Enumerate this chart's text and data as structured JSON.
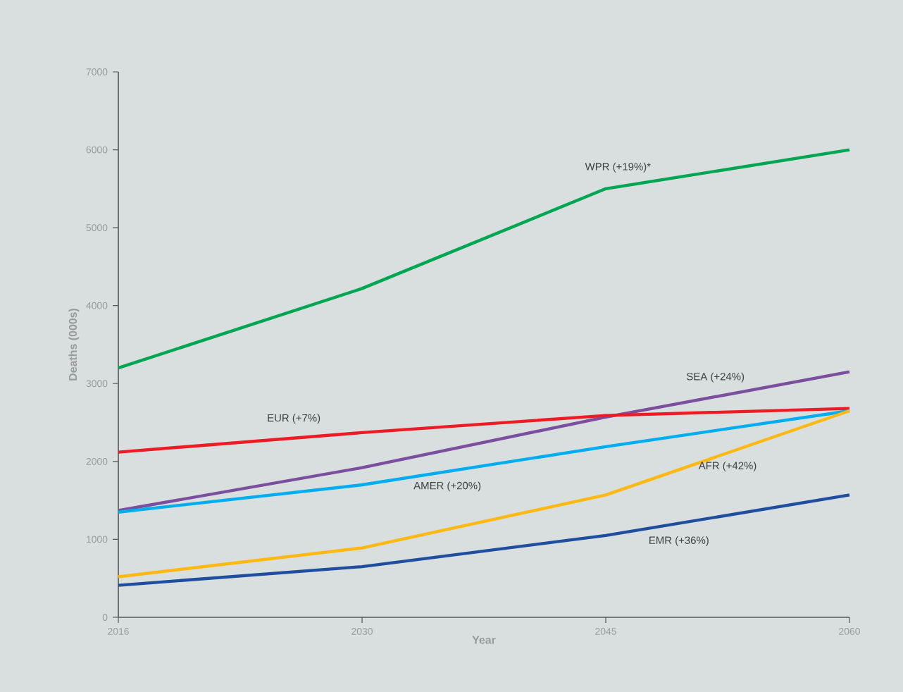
{
  "chart_data": {
    "type": "line",
    "xlabel": "Year",
    "ylabel": "Deaths (000s)",
    "categories": [
      "2016",
      "2030",
      "2045",
      "2060"
    ],
    "ylim": [
      0,
      7000
    ],
    "yticks": [
      0,
      1000,
      2000,
      3000,
      4000,
      5000,
      6000,
      7000
    ],
    "grid": false,
    "legend": false,
    "marker": "none",
    "line_style": "solid",
    "series": [
      {
        "name": "WPR (+19%)*",
        "color": "#00a651",
        "values": [
          3200,
          4220,
          5500,
          6000
        ]
      },
      {
        "name": "SEA (+24%)",
        "color": "#7b4f9e",
        "values": [
          1370,
          1920,
          2570,
          3150
        ]
      },
      {
        "name": "EUR (+7%)",
        "color": "#ed1c24",
        "values": [
          2120,
          2370,
          2590,
          2680
        ]
      },
      {
        "name": "AMER (+20%)",
        "color": "#00aeef",
        "values": [
          1350,
          1700,
          2190,
          2650
        ]
      },
      {
        "name": "AFR (+42%)",
        "color": "#fdb913",
        "values": [
          520,
          890,
          1570,
          2650
        ]
      },
      {
        "name": "EMR (+36%)",
        "color": "#1f4e9e",
        "values": [
          410,
          650,
          1050,
          1570
        ]
      }
    ]
  }
}
